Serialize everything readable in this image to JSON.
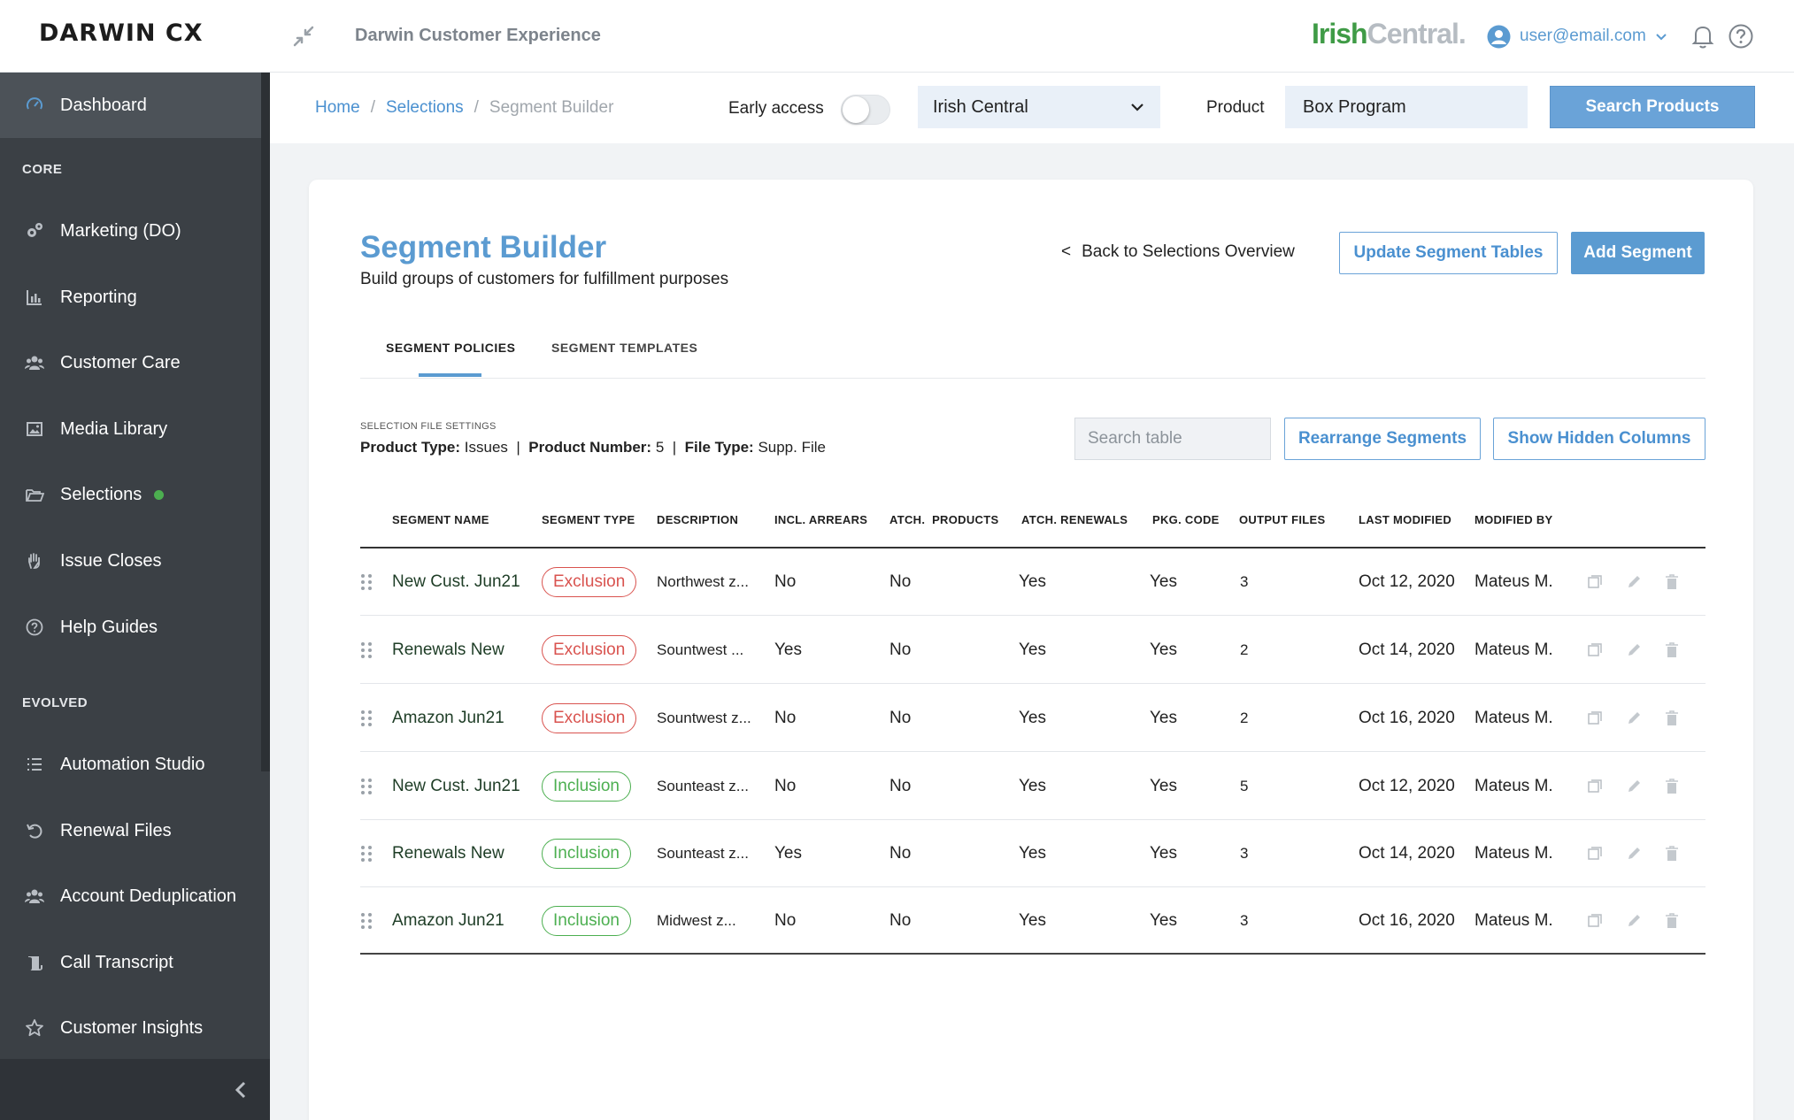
{
  "header": {
    "logo": "DARWIN CX",
    "app_title": "Darwin Customer Experience",
    "brand_irish": "Irish",
    "brand_central": "Central.",
    "user_email": "user@email.com"
  },
  "sidebar": {
    "items": [
      {
        "label": "Dashboard",
        "icon": "dashboard-icon"
      },
      {
        "label": "Marketing (DO)",
        "icon": "gears-icon"
      },
      {
        "label": "Reporting",
        "icon": "bar-chart-icon"
      },
      {
        "label": "Customer Care",
        "icon": "users-icon"
      },
      {
        "label": "Media Library",
        "icon": "image-icon"
      },
      {
        "label": "Selections",
        "icon": "folder-icon"
      },
      {
        "label": "Issue Closes",
        "icon": "hand-icon"
      },
      {
        "label": "Help Guides",
        "icon": "question-icon"
      },
      {
        "label": "Automation Studio",
        "icon": "list-icon"
      },
      {
        "label": "Renewal Files",
        "icon": "undo-icon"
      },
      {
        "label": "Account Deduplication",
        "icon": "users-icon"
      },
      {
        "label": "Call Transcript",
        "icon": "scroll-icon"
      },
      {
        "label": "Customer Insights",
        "icon": "star-icon"
      }
    ],
    "section_core": "CORE",
    "section_evolved": "EVOLVED"
  },
  "subheader": {
    "breadcrumb": [
      "Home",
      "Selections",
      "Segment Builder"
    ],
    "early_access_label": "Early access",
    "early_access_enabled": false,
    "publication": "Irish Central",
    "product_label": "Product",
    "product_value": "Box Program",
    "search_products_label": "Search Products"
  },
  "page": {
    "title": "Segment Builder",
    "subtitle": "Build groups of customers for fulfillment purposes",
    "back_label": "Back to Selections Overview",
    "back_glyph": "<",
    "update_label": "Update Segment Tables",
    "add_label": "Add Segment",
    "tabs": [
      "SEGMENT POLICIES",
      "SEGMENT TEMPLATES"
    ],
    "active_tab": 0,
    "settings_label": "SELECTION FILE SETTINGS",
    "settings": {
      "product_type_label": "Product Type:",
      "product_type": "Issues",
      "product_number_label": "Product Number:",
      "product_number": "5",
      "file_type_label": "File Type:",
      "file_type": "Supp. File",
      "separator": "|"
    },
    "search_placeholder": "Search table",
    "rearrange_label": "Rearrange Segments",
    "show_hidden_label": "Show Hidden Columns"
  },
  "table": {
    "columns": [
      "SEGMENT NAME",
      "SEGMENT TYPE",
      "DESCRIPTION",
      "INCL. ARREARS",
      "ATCH.  PRODUCTS",
      "ATCH. RENEWALS",
      "PKG. CODE",
      "OUTPUT FILES",
      "LAST MODIFIED",
      "MODIFIED BY"
    ],
    "rows": [
      {
        "name": "New Cust. Jun21",
        "type": "Exclusion",
        "description": "Northwest z...",
        "arrears": "No",
        "products": "No",
        "renewals": "Yes",
        "pkg": "Yes",
        "files": "3",
        "modified": "Oct 12, 2020",
        "by": "Mateus M."
      },
      {
        "name": "Renewals New",
        "type": "Exclusion",
        "description": "Sountwest ...",
        "arrears": "Yes",
        "products": "No",
        "renewals": "Yes",
        "pkg": "Yes",
        "files": "2",
        "modified": "Oct 14, 2020",
        "by": "Mateus M."
      },
      {
        "name": "Amazon Jun21",
        "type": "Exclusion",
        "description": "Sountwest z...",
        "arrears": "No",
        "products": "No",
        "renewals": "Yes",
        "pkg": "Yes",
        "files": "2",
        "modified": "Oct 16, 2020",
        "by": "Mateus M."
      },
      {
        "name": "New Cust. Jun21",
        "type": "Inclusion",
        "description": "Sounteast z...",
        "arrears": "No",
        "products": "No",
        "renewals": "Yes",
        "pkg": "Yes",
        "files": "5",
        "modified": "Oct 12, 2020",
        "by": "Mateus M."
      },
      {
        "name": "Renewals New",
        "type": "Inclusion",
        "description": "Sounteast z...",
        "arrears": "Yes",
        "products": "No",
        "renewals": "Yes",
        "pkg": "Yes",
        "files": "3",
        "modified": "Oct 14, 2020",
        "by": "Mateus M."
      },
      {
        "name": "Amazon Jun21",
        "type": "Inclusion",
        "description": "Midwest z...",
        "arrears": "No",
        "products": "No",
        "renewals": "Yes",
        "pkg": "Yes",
        "files": "3",
        "modified": "Oct 16, 2020",
        "by": "Mateus M."
      }
    ]
  },
  "colors": {
    "accent": "#5b9bd1",
    "sidebar_bg": "#3b4045",
    "exclusion": "#d9534f",
    "inclusion": "#4caf50"
  }
}
